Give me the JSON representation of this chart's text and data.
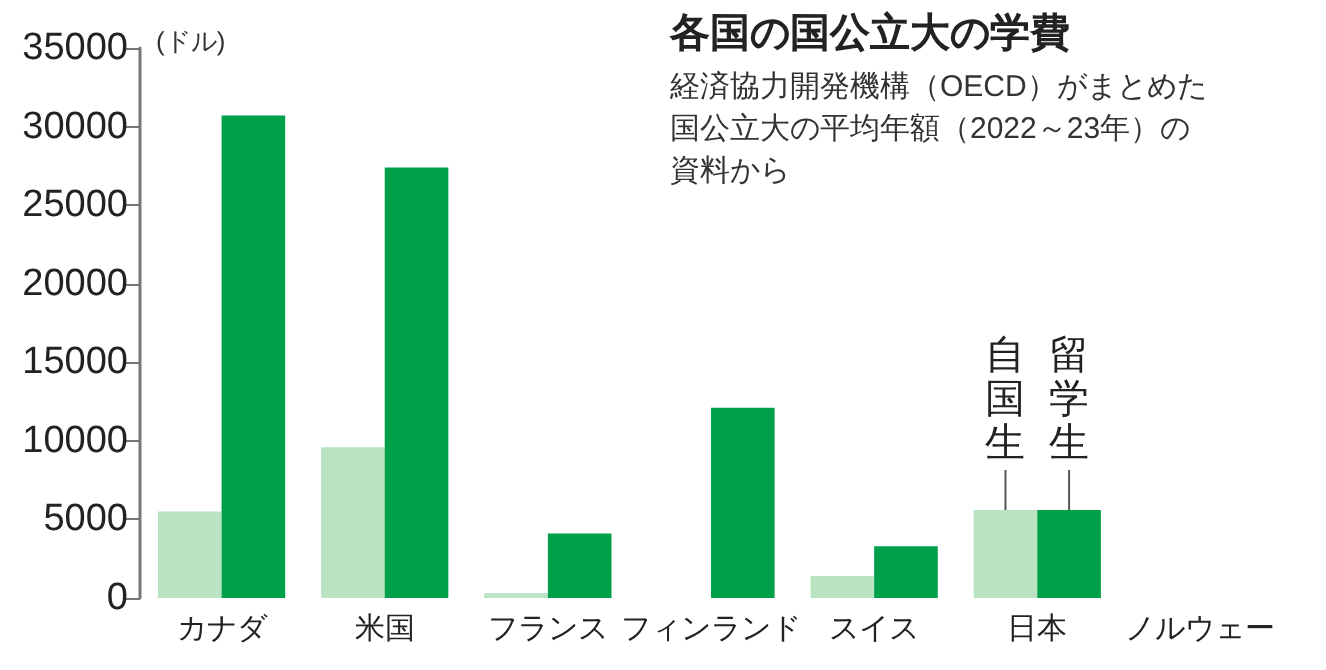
{
  "chart_data": {
    "type": "bar",
    "title": "各国の国公立大の学費",
    "subtitle": "経済協力開発機構（OECD）がまとめた国公立大の平均年額（2022～23年）の資料から",
    "ylabel": "(ドル)",
    "categories": [
      "カナダ",
      "米国",
      "フランス",
      "フィンランド",
      "スイス",
      "日本",
      "ノルウェー"
    ],
    "series": [
      {
        "name": "自国生",
        "color": "#b9e3c1",
        "values": [
          5500,
          9600,
          300,
          0,
          1400,
          5600,
          0
        ]
      },
      {
        "name": "留学生",
        "color": "#00a04a",
        "values": [
          30700,
          27400,
          4100,
          12100,
          3300,
          5600,
          0
        ]
      }
    ],
    "ylim": [
      0,
      35000
    ],
    "yticks": [
      0,
      5000,
      10000,
      15000,
      20000,
      25000,
      30000,
      35000
    ],
    "grid": false,
    "legend": false
  }
}
